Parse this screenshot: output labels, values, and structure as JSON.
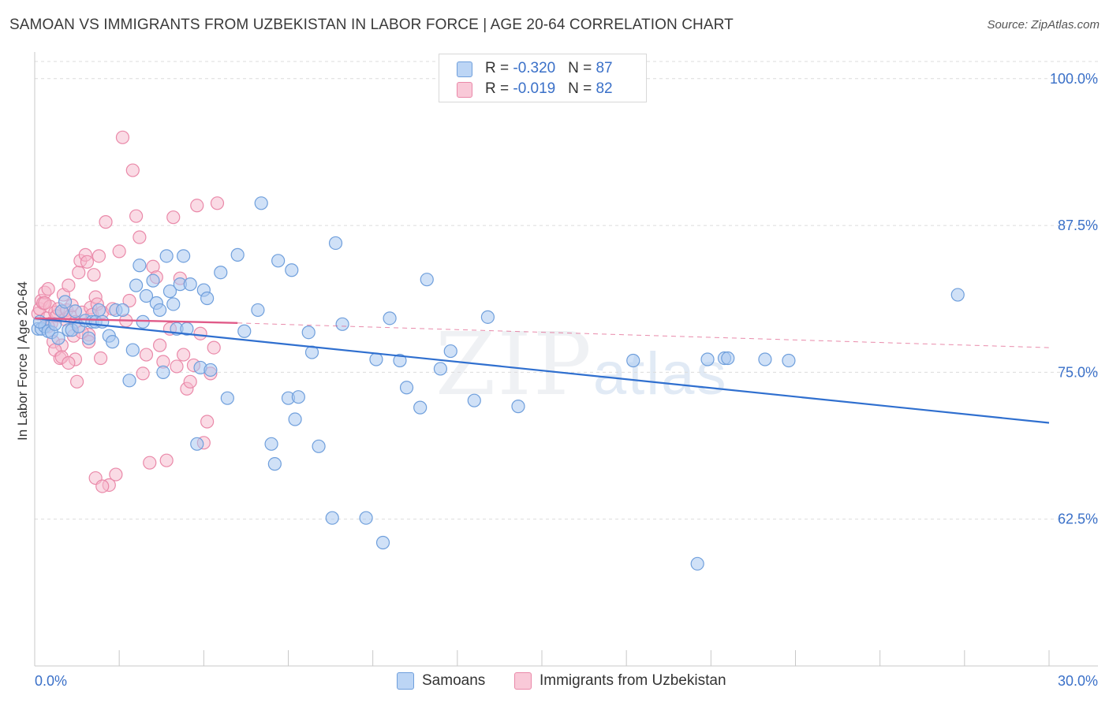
{
  "header": {
    "title": "SAMOAN VS IMMIGRANTS FROM UZBEKISTAN IN LABOR FORCE | AGE 20-64 CORRELATION CHART",
    "source": "Source: ZipAtlas.com"
  },
  "watermark": {
    "main": "ZIP",
    "suffix": "atlas"
  },
  "legend": {
    "rows": [
      {
        "r_label": "R = ",
        "r_value": "-0.320",
        "n_label": "N = ",
        "n_value": "87"
      },
      {
        "r_label": "R = ",
        "r_value": "-0.019",
        "n_label": "N = ",
        "n_value": "82"
      }
    ]
  },
  "bottom_legend": {
    "series1": "Samoans",
    "series2": "Immigrants from Uzbekistan"
  },
  "colors": {
    "series1_fill": "#a9c8f0",
    "series1_stroke": "#6f9fdc",
    "series1_line": "#2f6fcf",
    "series2_fill": "#f6b8cc",
    "series2_stroke": "#ea89a9",
    "series2_line": "#e05a88",
    "grid": "#dcdcdc",
    "axis_text": "#3a70c8"
  },
  "chart_data": {
    "type": "scatter",
    "title": "SAMOAN VS IMMIGRANTS FROM UZBEKISTAN IN LABOR FORCE | AGE 20-64 CORRELATION CHART",
    "ylabel": "In Labor Force | Age 20-64",
    "xlim": [
      0,
      30
    ],
    "ylim": [
      50,
      102
    ],
    "x_tick_labels": [
      {
        "value": 0,
        "label": "0.0%"
      },
      {
        "value": 30,
        "label": "30.0%"
      }
    ],
    "y_ticks": [
      {
        "value": 100,
        "label": "100.0%"
      },
      {
        "value": 87.5,
        "label": "87.5%"
      },
      {
        "value": 75,
        "label": "75.0%"
      },
      {
        "value": 62.5,
        "label": "62.5%"
      }
    ],
    "grid": "horizontal-dashed",
    "legend_placement": "top-center",
    "series": [
      {
        "name": "Samoans",
        "r": -0.32,
        "n": 87,
        "trend": {
          "x": [
            0,
            30
          ],
          "y": [
            79.6,
            70.7
          ]
        },
        "points": [
          [
            0.1,
            78.7
          ],
          [
            0.2,
            78.7
          ],
          [
            0.3,
            78.9
          ],
          [
            0.4,
            78.5
          ],
          [
            0.5,
            78.4
          ],
          [
            0.6,
            79.1
          ],
          [
            0.7,
            77.9
          ],
          [
            0.8,
            80.2
          ],
          [
            0.9,
            81.0
          ],
          [
            1.0,
            78.6
          ],
          [
            1.1,
            78.6
          ],
          [
            1.2,
            80.2
          ],
          [
            1.3,
            78.9
          ],
          [
            1.5,
            79.4
          ],
          [
            1.6,
            77.9
          ],
          [
            1.7,
            79.3
          ],
          [
            1.8,
            79.3
          ],
          [
            1.9,
            80.3
          ],
          [
            2.0,
            79.3
          ],
          [
            2.2,
            78.1
          ],
          [
            2.3,
            77.6
          ],
          [
            2.4,
            80.3
          ],
          [
            2.6,
            80.3
          ],
          [
            2.8,
            74.3
          ],
          [
            2.9,
            76.9
          ],
          [
            3.0,
            82.4
          ],
          [
            3.1,
            84.1
          ],
          [
            3.2,
            79.3
          ],
          [
            3.3,
            81.5
          ],
          [
            3.5,
            82.8
          ],
          [
            3.6,
            80.9
          ],
          [
            3.7,
            80.3
          ],
          [
            3.8,
            75.0
          ],
          [
            3.9,
            84.9
          ],
          [
            4.0,
            81.9
          ],
          [
            4.1,
            80.8
          ],
          [
            4.2,
            78.7
          ],
          [
            4.3,
            82.5
          ],
          [
            4.4,
            84.9
          ],
          [
            4.5,
            78.7
          ],
          [
            4.6,
            82.5
          ],
          [
            4.8,
            68.9
          ],
          [
            4.9,
            75.4
          ],
          [
            5.0,
            82.0
          ],
          [
            5.1,
            81.3
          ],
          [
            5.2,
            75.2
          ],
          [
            5.5,
            83.5
          ],
          [
            5.7,
            72.8
          ],
          [
            6.0,
            85.0
          ],
          [
            6.2,
            78.5
          ],
          [
            6.6,
            80.3
          ],
          [
            6.7,
            89.4
          ],
          [
            7.0,
            68.9
          ],
          [
            7.1,
            67.2
          ],
          [
            7.2,
            84.5
          ],
          [
            7.5,
            72.8
          ],
          [
            7.6,
            83.7
          ],
          [
            7.7,
            71.0
          ],
          [
            7.8,
            72.9
          ],
          [
            8.1,
            78.4
          ],
          [
            8.2,
            76.7
          ],
          [
            8.4,
            68.7
          ],
          [
            8.8,
            62.6
          ],
          [
            8.9,
            86.0
          ],
          [
            9.1,
            79.1
          ],
          [
            9.8,
            62.6
          ],
          [
            10.1,
            76.1
          ],
          [
            10.3,
            60.5
          ],
          [
            10.5,
            79.6
          ],
          [
            10.8,
            76.0
          ],
          [
            11.0,
            73.7
          ],
          [
            11.4,
            72.0
          ],
          [
            11.6,
            82.9
          ],
          [
            12.0,
            75.3
          ],
          [
            12.3,
            76.8
          ],
          [
            13.0,
            72.6
          ],
          [
            13.4,
            79.7
          ],
          [
            14.3,
            72.1
          ],
          [
            17.7,
            76.0
          ],
          [
            19.6,
            58.7
          ],
          [
            19.9,
            76.1
          ],
          [
            20.4,
            76.2
          ],
          [
            20.5,
            76.2
          ],
          [
            21.6,
            76.1
          ],
          [
            22.3,
            76.0
          ],
          [
            27.3,
            81.6
          ],
          [
            0.15,
            79.3
          ]
        ]
      },
      {
        "name": "Immigrants from Uzbekistan",
        "r": -0.019,
        "n": 82,
        "trend": {
          "x": [
            0,
            6
          ],
          "y": [
            79.6,
            79.2
          ]
        },
        "trend_extended": {
          "x": [
            6,
            30
          ],
          "y": [
            79.2,
            77.1
          ]
        },
        "points": [
          [
            0.1,
            80.0
          ],
          [
            0.15,
            80.4
          ],
          [
            0.2,
            81.1
          ],
          [
            0.25,
            80.9
          ],
          [
            0.3,
            81.8
          ],
          [
            0.35,
            79.6
          ],
          [
            0.4,
            82.1
          ],
          [
            0.45,
            80.6
          ],
          [
            0.5,
            79.2
          ],
          [
            0.55,
            77.6
          ],
          [
            0.6,
            80.1
          ],
          [
            0.65,
            79.8
          ],
          [
            0.7,
            80.4
          ],
          [
            0.75,
            76.2
          ],
          [
            0.8,
            77.3
          ],
          [
            0.85,
            81.6
          ],
          [
            0.9,
            79.5
          ],
          [
            0.95,
            80.3
          ],
          [
            1.0,
            82.4
          ],
          [
            1.05,
            79.8
          ],
          [
            1.1,
            80.7
          ],
          [
            1.15,
            78.1
          ],
          [
            1.2,
            76.1
          ],
          [
            1.25,
            74.2
          ],
          [
            1.3,
            83.5
          ],
          [
            1.35,
            84.5
          ],
          [
            1.4,
            80.1
          ],
          [
            1.5,
            85.0
          ],
          [
            1.55,
            84.4
          ],
          [
            1.6,
            78.2
          ],
          [
            1.65,
            80.5
          ],
          [
            1.7,
            79.9
          ],
          [
            1.75,
            83.3
          ],
          [
            1.8,
            81.4
          ],
          [
            1.85,
            80.8
          ],
          [
            1.9,
            84.9
          ],
          [
            1.95,
            76.2
          ],
          [
            2.0,
            80.1
          ],
          [
            2.1,
            87.8
          ],
          [
            2.2,
            65.4
          ],
          [
            2.3,
            80.4
          ],
          [
            2.4,
            66.3
          ],
          [
            2.5,
            85.3
          ],
          [
            2.6,
            95.0
          ],
          [
            2.7,
            79.4
          ],
          [
            2.8,
            81.1
          ],
          [
            2.9,
            92.2
          ],
          [
            3.0,
            88.3
          ],
          [
            3.1,
            86.5
          ],
          [
            3.2,
            74.9
          ],
          [
            3.3,
            76.5
          ],
          [
            3.4,
            67.3
          ],
          [
            3.5,
            84.0
          ],
          [
            3.6,
            83.1
          ],
          [
            3.7,
            77.3
          ],
          [
            3.8,
            75.9
          ],
          [
            3.9,
            67.5
          ],
          [
            4.0,
            78.7
          ],
          [
            4.1,
            88.2
          ],
          [
            4.2,
            75.5
          ],
          [
            4.3,
            83.0
          ],
          [
            4.4,
            76.5
          ],
          [
            4.5,
            73.6
          ],
          [
            4.6,
            74.2
          ],
          [
            4.7,
            75.6
          ],
          [
            4.8,
            89.2
          ],
          [
            4.9,
            78.3
          ],
          [
            5.0,
            69.0
          ],
          [
            5.1,
            70.8
          ],
          [
            5.2,
            74.9
          ],
          [
            5.3,
            77.1
          ],
          [
            5.4,
            89.4
          ],
          [
            0.3,
            80.9
          ],
          [
            0.4,
            78.9
          ],
          [
            0.6,
            76.9
          ],
          [
            0.8,
            76.3
          ],
          [
            1.0,
            75.8
          ],
          [
            1.2,
            79.3
          ],
          [
            1.4,
            78.4
          ],
          [
            1.6,
            77.6
          ],
          [
            1.8,
            66.0
          ],
          [
            2.0,
            65.3
          ]
        ]
      }
    ]
  }
}
